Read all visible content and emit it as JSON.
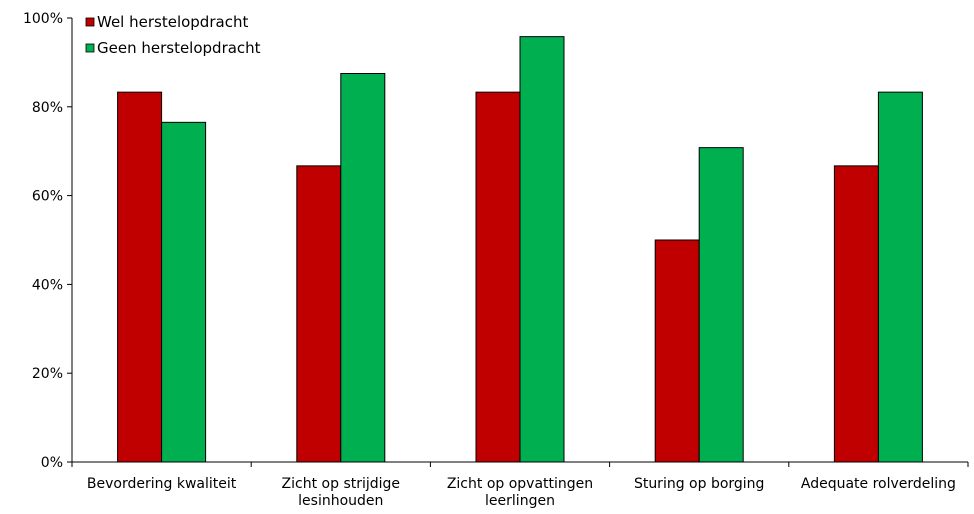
{
  "chart_data": {
    "type": "bar",
    "categories": [
      [
        "Bevordering kwaliteit"
      ],
      [
        "Zicht op strijdige",
        "lesinhouden"
      ],
      [
        "Zicht op opvattingen",
        "leerlingen"
      ],
      [
        "Sturing op borging"
      ],
      [
        "Adequate rolverdeling"
      ]
    ],
    "series": [
      {
        "name": "Wel herstelopdracht",
        "color": "#C00000",
        "values": [
          83.3,
          66.7,
          83.3,
          50.0,
          66.7
        ]
      },
      {
        "name": "Geen herstelopdracht",
        "color": "#00B050",
        "values": [
          76.5,
          87.5,
          95.8,
          70.8,
          83.3
        ]
      }
    ],
    "ylim": [
      0,
      100
    ],
    "yticks": [
      "0%",
      "20%",
      "40%",
      "60%",
      "80%",
      "100%"
    ],
    "title": "",
    "xlabel": "",
    "ylabel": "",
    "grid": false,
    "legend_position": "top-left"
  }
}
